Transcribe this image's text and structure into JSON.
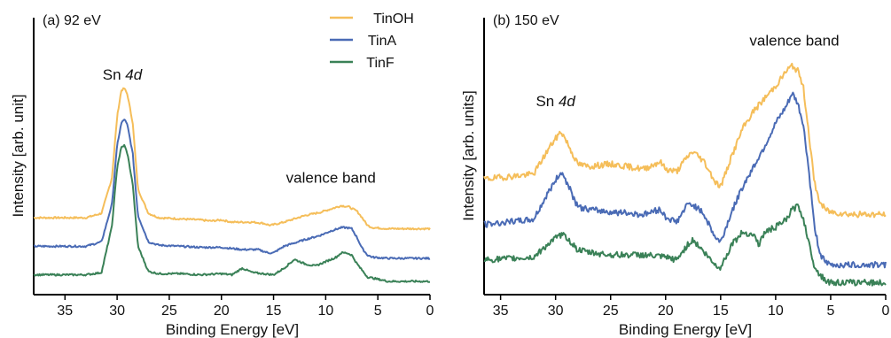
{
  "chart_data": [
    {
      "type": "line",
      "panel_label": "(a) 92 eV",
      "xlabel": "Binding Energy [eV]",
      "ylabel": "Intensity [arb. unit]",
      "xlim": [
        38,
        0
      ],
      "ylim": [
        0,
        1
      ],
      "x_ticks": [
        "35",
        "30",
        "25",
        "20",
        "15",
        "10",
        "5",
        "0"
      ],
      "x_tick_values": [
        35,
        30,
        25,
        20,
        15,
        10,
        5,
        0
      ],
      "annotations": [
        {
          "text_pre": "Sn ",
          "text_em": "4d",
          "x": 29.5,
          "y": 0.92
        },
        {
          "text_pre": "valence band",
          "text_em": "",
          "x": 9.5,
          "y": 0.45
        }
      ],
      "legend": {
        "placement": "top-right",
        "entries": [
          "TinOH",
          "TinA",
          "TinF"
        ]
      },
      "series": [
        {
          "name": "TinOH",
          "color": "#F5BE5A",
          "x": [
            38,
            33,
            31.5,
            30.5,
            30,
            29.6,
            29.3,
            29,
            28.5,
            28,
            27,
            26,
            24,
            22,
            21,
            20,
            19,
            17,
            16,
            15.3,
            14,
            12,
            10.5,
            9.5,
            8.5,
            7.8,
            7,
            6.5,
            6,
            5.5,
            4,
            0
          ],
          "y": [
            0.29,
            0.29,
            0.31,
            0.47,
            0.75,
            0.87,
            0.88,
            0.85,
            0.72,
            0.42,
            0.31,
            0.29,
            0.285,
            0.28,
            0.275,
            0.28,
            0.27,
            0.27,
            0.265,
            0.255,
            0.27,
            0.3,
            0.315,
            0.33,
            0.345,
            0.34,
            0.32,
            0.29,
            0.255,
            0.245,
            0.24,
            0.24
          ]
        },
        {
          "name": "TinA",
          "color": "#4A6BB5",
          "x": [
            38,
            33,
            31.5,
            30.5,
            30,
            29.6,
            29.3,
            29,
            28.5,
            28,
            27,
            26,
            24,
            22,
            20,
            18,
            16.5,
            15.5,
            15,
            14,
            12,
            10.5,
            9.5,
            8.5,
            8,
            7.5,
            7,
            6.5,
            6,
            5.5,
            4,
            0
          ],
          "y": [
            0.16,
            0.16,
            0.18,
            0.35,
            0.62,
            0.72,
            0.74,
            0.71,
            0.58,
            0.3,
            0.18,
            0.165,
            0.16,
            0.155,
            0.155,
            0.145,
            0.145,
            0.13,
            0.13,
            0.16,
            0.19,
            0.21,
            0.23,
            0.245,
            0.245,
            0.24,
            0.2,
            0.15,
            0.12,
            0.11,
            0.105,
            0.105
          ]
        },
        {
          "name": "TinF",
          "color": "#3A8157",
          "x": [
            38,
            33,
            31.5,
            30.5,
            30,
            29.6,
            29.3,
            29,
            28.5,
            28,
            27,
            26,
            24,
            22,
            20,
            19,
            18,
            17,
            16,
            15,
            14,
            13,
            12,
            11,
            10,
            9,
            8.5,
            8,
            7.5,
            7,
            6,
            5,
            4,
            0
          ],
          "y": [
            0.03,
            0.03,
            0.04,
            0.25,
            0.52,
            0.61,
            0.62,
            0.58,
            0.44,
            0.16,
            0.045,
            0.035,
            0.035,
            0.03,
            0.035,
            0.03,
            0.06,
            0.04,
            0.035,
            0.03,
            0.06,
            0.1,
            0.08,
            0.07,
            0.09,
            0.11,
            0.13,
            0.13,
            0.12,
            0.08,
            0.02,
            0.01,
            0.0,
            0.0
          ]
        }
      ]
    },
    {
      "type": "line",
      "panel_label": "(b) 150 eV",
      "xlabel": "Binding Energy [eV]",
      "ylabel": "Intensity [arb. units]",
      "xlim": [
        36.5,
        0
      ],
      "ylim": [
        0,
        1
      ],
      "x_ticks": [
        "35",
        "30",
        "25",
        "20",
        "15",
        "10",
        "5",
        "0"
      ],
      "x_tick_values": [
        35,
        30,
        25,
        20,
        15,
        10,
        5,
        0
      ],
      "annotations": [
        {
          "text_pre": "Sn ",
          "text_em": "4d",
          "x": 30,
          "y": 0.72
        },
        {
          "text_pre": "valence band",
          "text_em": "",
          "x": 8.3,
          "y": 0.96
        }
      ],
      "series": [
        {
          "name": "TinOH",
          "color": "#F5BE5A",
          "x": [
            36.5,
            32,
            30.5,
            29.5,
            29,
            28,
            27,
            25,
            22,
            20.5,
            20,
            19,
            18,
            17.5,
            16.5,
            15.5,
            15,
            14,
            13,
            12,
            11,
            10,
            9,
            8.5,
            8,
            7.5,
            7,
            6.5,
            6,
            5.5,
            5,
            3,
            0
          ],
          "y": [
            0.43,
            0.45,
            0.56,
            0.62,
            0.58,
            0.49,
            0.48,
            0.49,
            0.47,
            0.5,
            0.47,
            0.46,
            0.52,
            0.54,
            0.5,
            0.42,
            0.4,
            0.52,
            0.63,
            0.7,
            0.75,
            0.8,
            0.86,
            0.88,
            0.86,
            0.8,
            0.62,
            0.42,
            0.34,
            0.31,
            0.3,
            0.29,
            0.29
          ]
        },
        {
          "name": "TinA",
          "color": "#4A6BB5",
          "x": [
            36.5,
            32,
            30.5,
            29.5,
            29,
            28,
            27,
            25,
            22,
            20.5,
            20,
            19,
            18,
            17.5,
            16.5,
            15.5,
            15,
            14,
            13,
            12,
            11,
            10,
            9,
            8.5,
            8,
            7.5,
            7,
            6.5,
            6,
            5.5,
            5,
            3,
            0
          ],
          "y": [
            0.25,
            0.27,
            0.39,
            0.46,
            0.42,
            0.32,
            0.31,
            0.3,
            0.29,
            0.31,
            0.28,
            0.26,
            0.33,
            0.33,
            0.29,
            0.2,
            0.18,
            0.3,
            0.4,
            0.48,
            0.56,
            0.65,
            0.72,
            0.77,
            0.73,
            0.65,
            0.47,
            0.25,
            0.14,
            0.1,
            0.09,
            0.09,
            0.09
          ]
        },
        {
          "name": "TinF",
          "color": "#3A8157",
          "x": [
            36.5,
            32,
            30.5,
            29.5,
            29,
            28,
            27,
            25,
            22,
            20,
            19,
            18,
            17.5,
            16.5,
            15.5,
            15,
            14,
            13,
            12,
            11.5,
            11,
            10,
            9,
            8.5,
            8,
            7.5,
            7,
            6.5,
            6,
            5.5,
            5,
            3,
            0
          ],
          "y": [
            0.11,
            0.12,
            0.18,
            0.21,
            0.2,
            0.15,
            0.14,
            0.13,
            0.13,
            0.12,
            0.11,
            0.17,
            0.19,
            0.14,
            0.09,
            0.08,
            0.17,
            0.22,
            0.21,
            0.17,
            0.22,
            0.24,
            0.27,
            0.31,
            0.32,
            0.28,
            0.18,
            0.09,
            0.05,
            0.03,
            0.02,
            0.02,
            0.02
          ]
        }
      ]
    }
  ]
}
